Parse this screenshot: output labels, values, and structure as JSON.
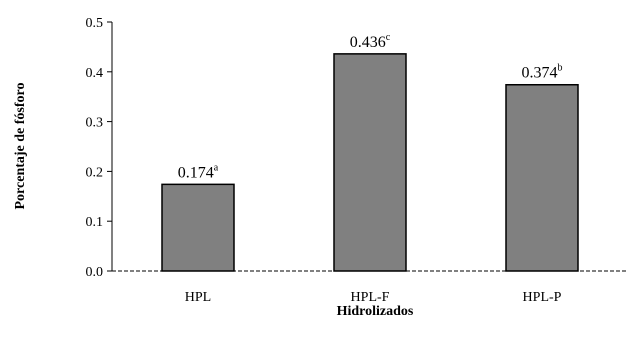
{
  "chart_data": {
    "type": "bar",
    "title": "",
    "xlabel": "Hidrolizados",
    "ylabel": "Porcentaje de fósforo",
    "categories": [
      "HPL",
      "HPL-F",
      "HPL-P"
    ],
    "values": [
      0.174,
      0.436,
      0.374
    ],
    "data_labels": [
      {
        "value": "0.174",
        "sup": "a"
      },
      {
        "value": "0.436",
        "sup": "c"
      },
      {
        "value": "0.374",
        "sup": "b"
      }
    ],
    "ylim": [
      0,
      0.5
    ],
    "yticks": [
      "0.0",
      "0.1",
      "0.2",
      "0.3",
      "0.4",
      "0.5"
    ],
    "grid": false,
    "legend": "none",
    "bar_color": "#808080",
    "bar_edge_color": "#000000"
  }
}
